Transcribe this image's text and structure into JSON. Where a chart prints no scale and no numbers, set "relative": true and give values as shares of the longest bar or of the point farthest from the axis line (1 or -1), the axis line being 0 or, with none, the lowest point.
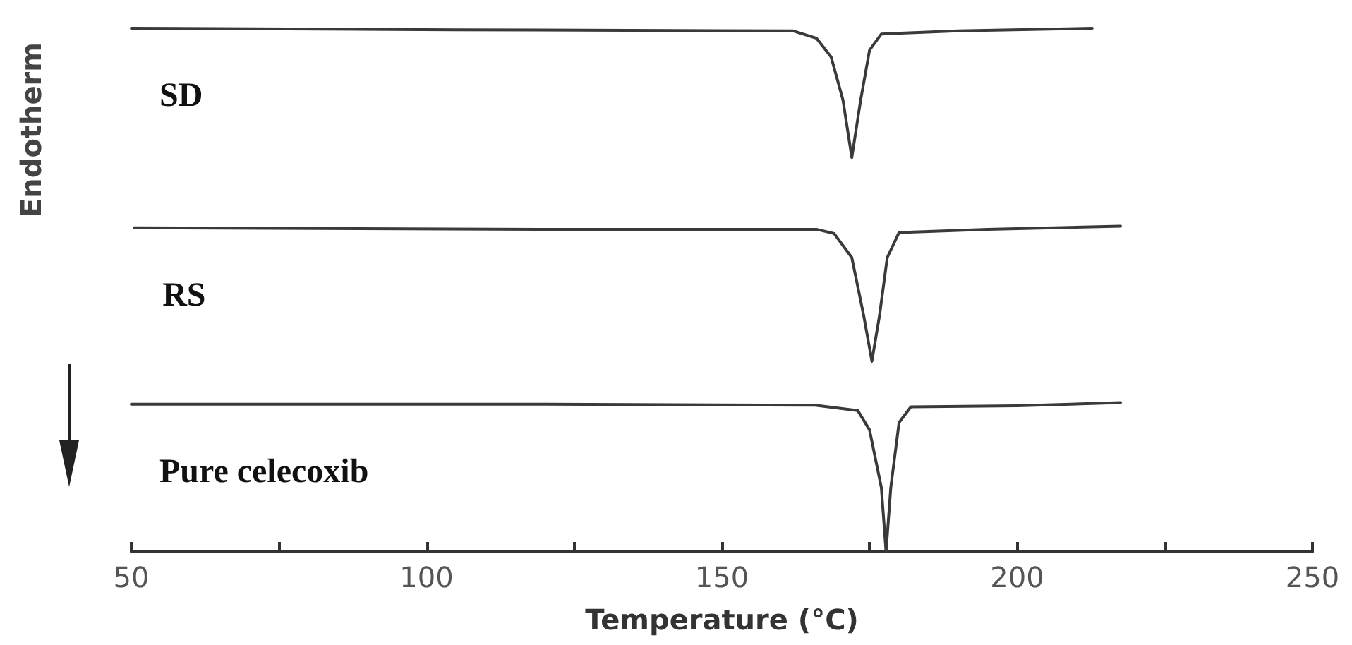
{
  "chart_data": {
    "type": "line",
    "relative": true,
    "xlabel": "Temperature (°C)",
    "ylabel": "Endotherm",
    "xlim": [
      50,
      250
    ],
    "xticks": [
      50,
      {
        "value": 75,
        "label": null
      },
      100,
      {
        "value": 125,
        "label": null
      },
      150,
      {
        "value": 175,
        "label": null
      },
      200,
      {
        "value": 225,
        "label": null
      },
      250
    ],
    "grid": false,
    "legend": false,
    "marker": "none",
    "line_style": "solid",
    "series": [
      {
        "name": "SD",
        "color": "#3a3a3a",
        "x": [
          50,
          105,
          162,
          166,
          168.5,
          170.5,
          172,
          173.5,
          175,
          177,
          190,
          212.7
        ],
        "values": [
          1.0,
          0.997,
          0.995,
          0.981,
          0.945,
          0.863,
          0.753,
          0.863,
          0.958,
          0.989,
          0.995,
          1.0
        ]
      },
      {
        "name": "RS",
        "color": "#3a3a3a",
        "x": [
          50.5,
          120,
          166,
          169,
          172,
          174,
          175.4,
          176.7,
          178,
          180,
          195,
          217.5
        ],
        "values": [
          0.619,
          0.616,
          0.616,
          0.608,
          0.562,
          0.452,
          0.364,
          0.452,
          0.562,
          0.61,
          0.616,
          0.622
        ]
      },
      {
        "name": "Pure celecoxib",
        "color": "#3a3a3a",
        "x": [
          50,
          120,
          165.8,
          173,
          175,
          177,
          177.8,
          178.6,
          180,
          182,
          200,
          217.5
        ],
        "values": [
          0.282,
          0.282,
          0.28,
          0.27,
          0.233,
          0.123,
          0.0,
          0.123,
          0.247,
          0.277,
          0.279,
          0.285
        ]
      }
    ]
  }
}
